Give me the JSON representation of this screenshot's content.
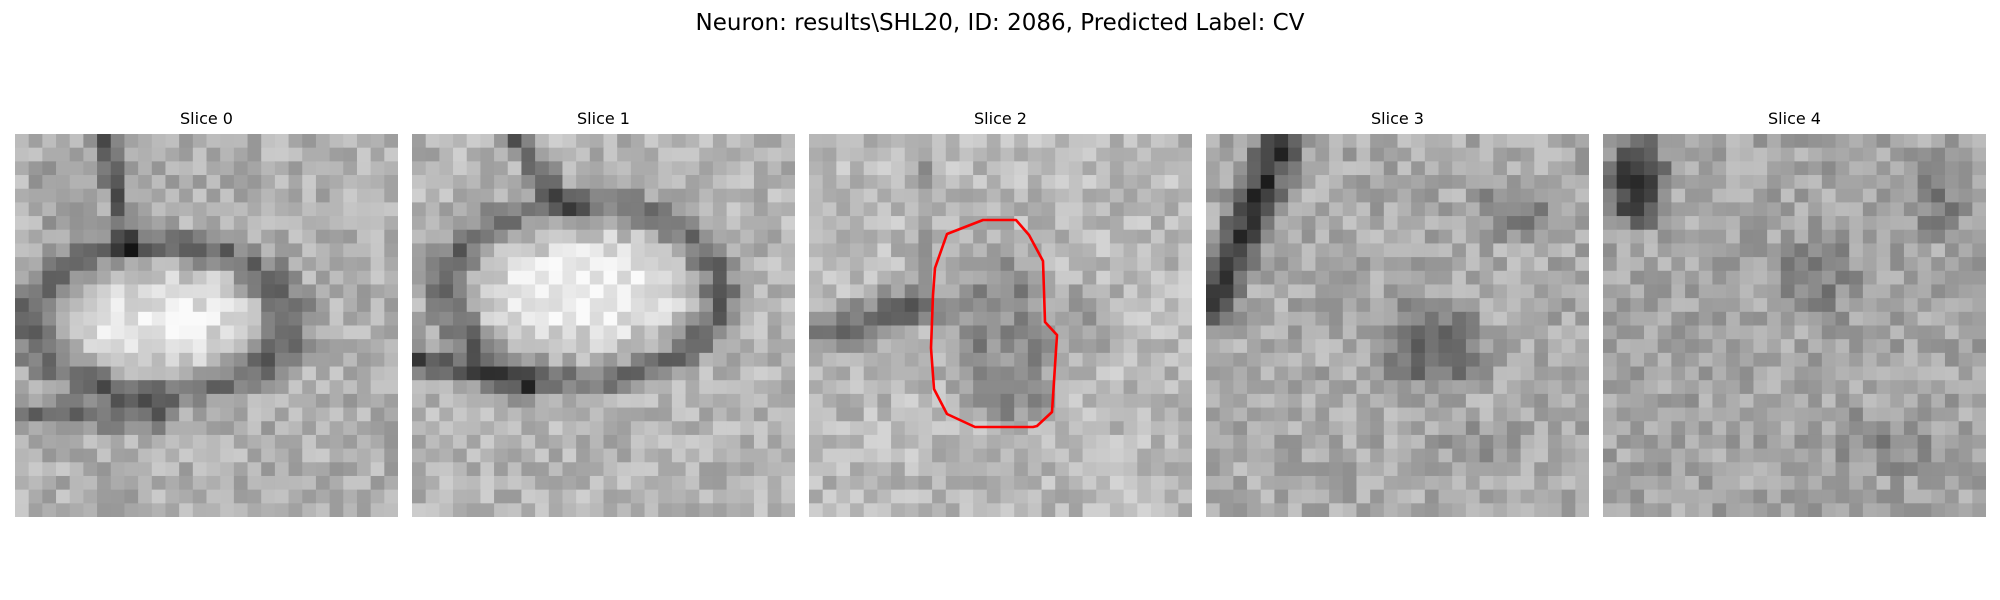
{
  "figure": {
    "title": "Neuron: results\\SHL20, ID: 2086, Predicted Label: CV",
    "contour_color": "#ff0000",
    "colormap": "gray"
  },
  "panels": [
    {
      "title": "Slice 0",
      "has_contour": false
    },
    {
      "title": "Slice 1",
      "has_contour": false
    },
    {
      "title": "Slice 2",
      "has_contour": true
    },
    {
      "title": "Slice 3",
      "has_contour": false
    },
    {
      "title": "Slice 4",
      "has_contour": false
    }
  ]
}
